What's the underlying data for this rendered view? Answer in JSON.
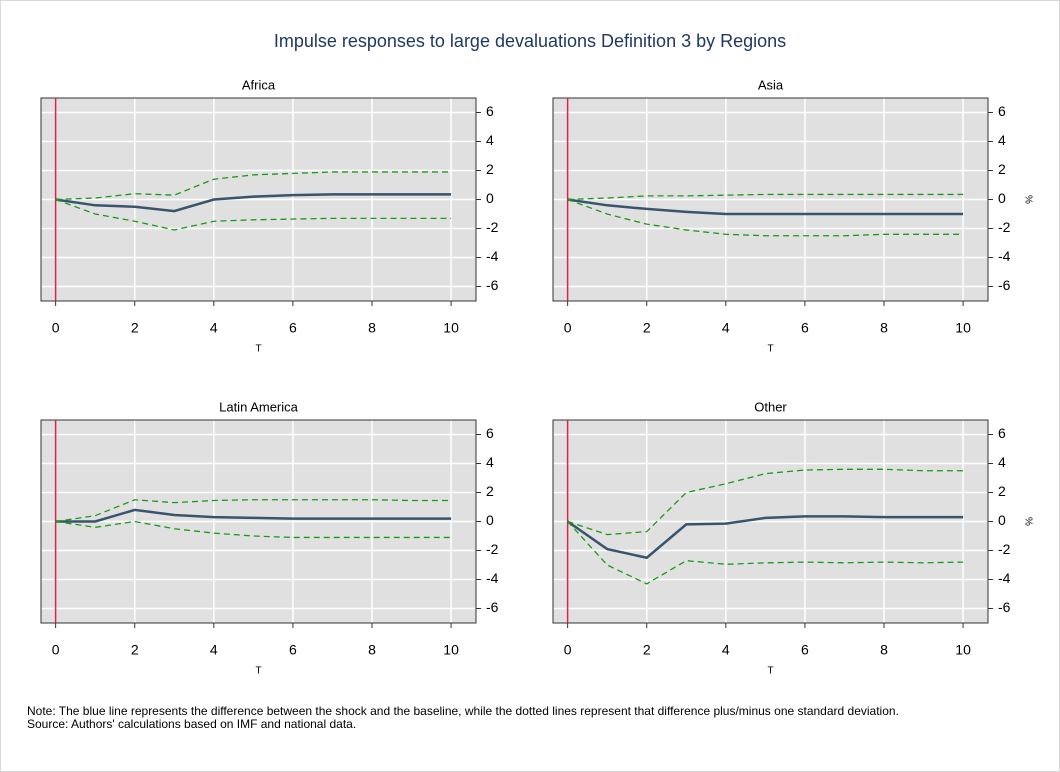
{
  "title": "Impulse responses to large devaluations Definition 3 by Regions",
  "note": "Note: The blue line represents the difference between the shock and the baseline, while the dotted lines represent that difference plus/minus one standard deviation.",
  "source": "Source: Authors' calculations based on IMF and national data.",
  "chart_data": [
    {
      "type": "line",
      "title": "Africa",
      "xlabel": "T",
      "x": [
        0,
        1,
        2,
        3,
        4,
        5,
        6,
        7,
        8,
        9,
        10
      ],
      "xlim": [
        -0.37,
        10.63
      ],
      "xticks": [
        0,
        2,
        4,
        6,
        8,
        10
      ],
      "ylim": [
        -7,
        7
      ],
      "yticks": [
        -6,
        -4,
        -2,
        0,
        2,
        4,
        6
      ],
      "grid": true,
      "vline": 0,
      "vline_color": "#e0204a",
      "series": [
        {
          "color": "#3a546e",
          "dashed": false,
          "values": [
            0,
            -0.4,
            -0.5,
            -0.8,
            0,
            0.2,
            0.3,
            0.35,
            0.35,
            0.35,
            0.35
          ]
        },
        {
          "color": "#1a9a1a",
          "dashed": true,
          "values": [
            0,
            0.1,
            0.4,
            0.3,
            1.4,
            1.7,
            1.8,
            1.9,
            1.9,
            1.9,
            1.9
          ]
        },
        {
          "color": "#1a9a1a",
          "dashed": true,
          "values": [
            0,
            -1,
            -1.5,
            -2.1,
            -1.5,
            -1.4,
            -1.35,
            -1.3,
            -1.3,
            -1.3,
            -1.3
          ]
        }
      ]
    },
    {
      "type": "line",
      "title": "Asia",
      "xlabel": "T",
      "ylabel": "%",
      "x": [
        0,
        1,
        2,
        3,
        4,
        5,
        6,
        7,
        8,
        9,
        10
      ],
      "xlim": [
        -0.37,
        10.63
      ],
      "xticks": [
        0,
        2,
        4,
        6,
        8,
        10
      ],
      "ylim": [
        -7,
        7
      ],
      "yticks": [
        -6,
        -4,
        -2,
        0,
        2,
        4,
        6
      ],
      "grid": true,
      "vline": 0,
      "vline_color": "#e0204a",
      "series": [
        {
          "color": "#3a546e",
          "dashed": false,
          "values": [
            0,
            -0.4,
            -0.65,
            -0.85,
            -1,
            -1,
            -1,
            -1,
            -1,
            -1,
            -1
          ]
        },
        {
          "color": "#1a9a1a",
          "dashed": true,
          "values": [
            0,
            0.1,
            0.25,
            0.25,
            0.3,
            0.35,
            0.35,
            0.35,
            0.35,
            0.35,
            0.35
          ]
        },
        {
          "color": "#1a9a1a",
          "dashed": true,
          "values": [
            0,
            -1,
            -1.7,
            -2.1,
            -2.4,
            -2.5,
            -2.5,
            -2.5,
            -2.4,
            -2.4,
            -2.4
          ]
        }
      ]
    },
    {
      "type": "line",
      "title": "Latin America",
      "xlabel": "T",
      "x": [
        0,
        1,
        2,
        3,
        4,
        5,
        6,
        7,
        8,
        9,
        10
      ],
      "xlim": [
        -0.37,
        10.63
      ],
      "xticks": [
        0,
        2,
        4,
        6,
        8,
        10
      ],
      "ylim": [
        -7,
        7
      ],
      "yticks": [
        -6,
        -4,
        -2,
        0,
        2,
        4,
        6
      ],
      "grid": true,
      "vline": 0,
      "vline_color": "#e0204a",
      "series": [
        {
          "color": "#3a546e",
          "dashed": false,
          "values": [
            0,
            0,
            0.8,
            0.45,
            0.3,
            0.25,
            0.2,
            0.2,
            0.2,
            0.2,
            0.2
          ]
        },
        {
          "color": "#1a9a1a",
          "dashed": true,
          "values": [
            0,
            0.4,
            1.5,
            1.3,
            1.45,
            1.5,
            1.5,
            1.5,
            1.5,
            1.45,
            1.45
          ]
        },
        {
          "color": "#1a9a1a",
          "dashed": true,
          "values": [
            0,
            -0.4,
            0,
            -0.5,
            -0.8,
            -1,
            -1.1,
            -1.1,
            -1.1,
            -1.1,
            -1.1
          ]
        }
      ]
    },
    {
      "type": "line",
      "title": "Other",
      "xlabel": "T",
      "ylabel": "%",
      "x": [
        0,
        1,
        2,
        3,
        4,
        5,
        6,
        7,
        8,
        9,
        10
      ],
      "xlim": [
        -0.37,
        10.63
      ],
      "xticks": [
        0,
        2,
        4,
        6,
        8,
        10
      ],
      "ylim": [
        -7,
        7
      ],
      "yticks": [
        -6,
        -4,
        -2,
        0,
        2,
        4,
        6
      ],
      "grid": true,
      "vline": 0,
      "vline_color": "#e0204a",
      "series": [
        {
          "color": "#3a546e",
          "dashed": false,
          "values": [
            0,
            -1.9,
            -2.5,
            -0.2,
            -0.15,
            0.25,
            0.35,
            0.35,
            0.3,
            0.3,
            0.3
          ]
        },
        {
          "color": "#1a9a1a",
          "dashed": true,
          "values": [
            0,
            -0.9,
            -0.7,
            2,
            2.6,
            3.3,
            3.55,
            3.6,
            3.6,
            3.5,
            3.5
          ]
        },
        {
          "color": "#1a9a1a",
          "dashed": true,
          "values": [
            0,
            -3,
            -4.3,
            -2.7,
            -2.95,
            -2.85,
            -2.8,
            -2.85,
            -2.8,
            -2.85,
            -2.8
          ]
        }
      ]
    }
  ]
}
